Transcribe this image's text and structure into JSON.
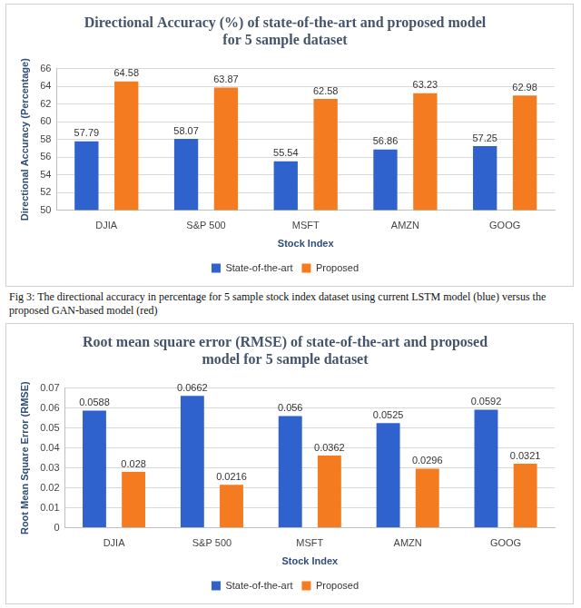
{
  "caption": "Fig 3: The directional accuracy in percentage for 5 sample stock index dataset using current LSTM model (blue) versus the proposed GAN-based model (red)",
  "chart_data": [
    {
      "type": "bar",
      "title": [
        "Directional Accuracy (%) of state-of-the-art and proposed model",
        "for 5 sample dataset"
      ],
      "x_label": "Stock Index",
      "y_label": "Directional Accuracy (Percentage)",
      "categories": [
        "DJIA",
        "S&P 500",
        "MSFT",
        "AMZN",
        "GOOG"
      ],
      "series": [
        {
          "name": "State-of-the-art",
          "color": "#2f62cc",
          "values": [
            57.79,
            58.07,
            55.54,
            56.86,
            57.25
          ]
        },
        {
          "name": "Proposed",
          "color": "#f47b20",
          "values": [
            64.58,
            63.87,
            62.58,
            63.23,
            62.98
          ]
        }
      ],
      "ylim": [
        50,
        66
      ],
      "yticks": [
        50,
        52,
        54,
        56,
        58,
        60,
        62,
        64,
        66
      ],
      "grid": true,
      "legend": "bottom",
      "data_labels": true
    },
    {
      "type": "bar",
      "title": [
        "Root mean square error (RMSE) of state-of-the-art and proposed",
        "model for 5 sample dataset"
      ],
      "x_label": "Stock Index",
      "y_label": "Root Mean Square Error (RMSE)",
      "categories": [
        "DJIA",
        "S&P 500",
        "MSFT",
        "AMZN",
        "GOOG"
      ],
      "series": [
        {
          "name": "State-of-the-art",
          "color": "#2f62cc",
          "values": [
            0.0588,
            0.0662,
            0.056,
            0.0525,
            0.0592
          ]
        },
        {
          "name": "Proposed",
          "color": "#f47b20",
          "values": [
            0.028,
            0.0216,
            0.0362,
            0.0296,
            0.0321
          ]
        }
      ],
      "ylim": [
        0,
        0.07
      ],
      "yticks": [
        0,
        0.01,
        0.02,
        0.03,
        0.04,
        0.05,
        0.06,
        0.07
      ],
      "grid": true,
      "legend": "bottom",
      "data_labels": true
    }
  ]
}
